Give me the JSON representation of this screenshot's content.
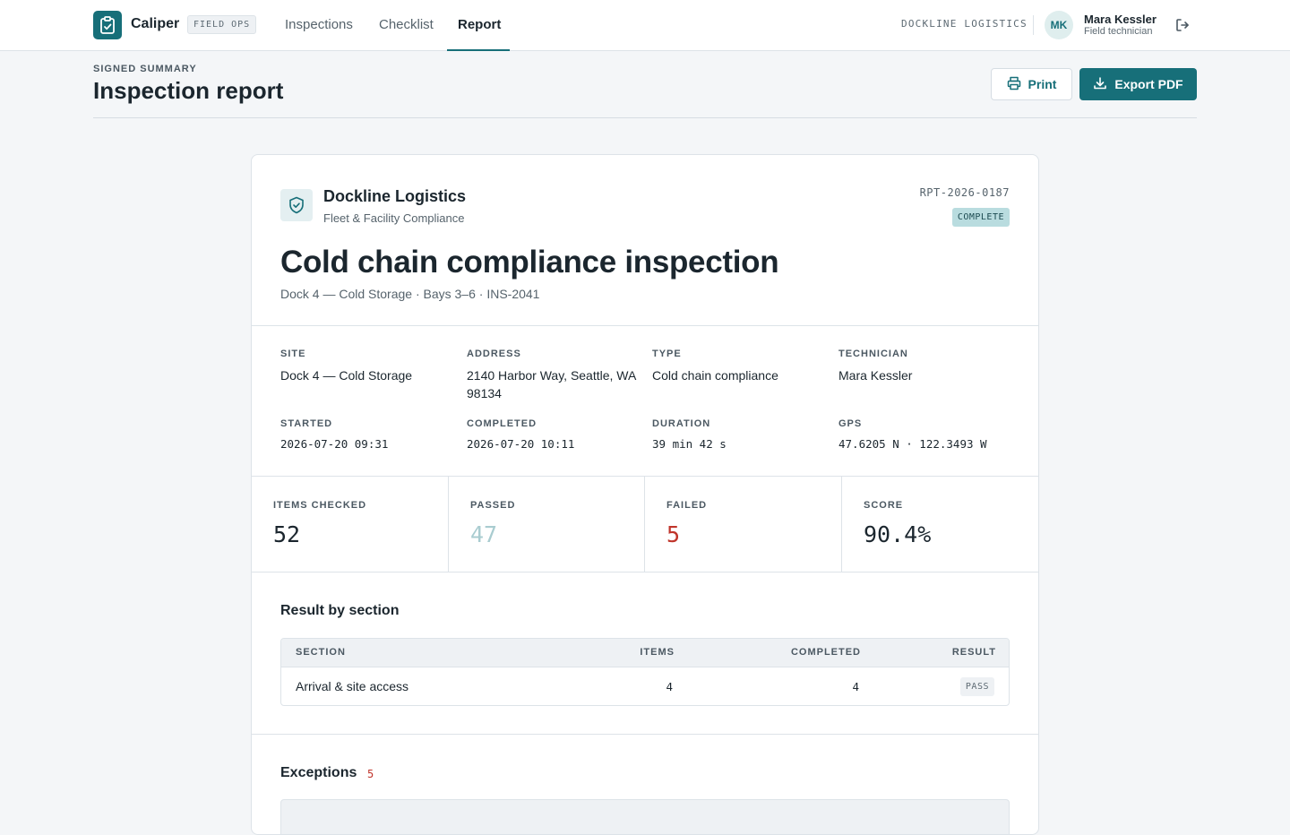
{
  "app": {
    "name": "Caliper",
    "tag": "FIELD OPS"
  },
  "nav": {
    "items": [
      {
        "label": "Inspections"
      },
      {
        "label": "Checklist"
      },
      {
        "label": "Report",
        "active": true
      }
    ]
  },
  "account": {
    "org": "DOCKLINE LOGISTICS",
    "initials": "MK",
    "name": "Mara Kessler",
    "role": "Field technician"
  },
  "page": {
    "eyebrow": "SIGNED SUMMARY",
    "title": "Inspection report",
    "print_label": "Print",
    "export_label": "Export PDF"
  },
  "report": {
    "org_name": "Dockline Logistics",
    "org_sub": "Fleet & Facility Compliance",
    "id": "RPT-2026-0187",
    "status": "COMPLETE",
    "title": "Cold chain compliance inspection",
    "subtitle": "Dock 4 — Cold Storage · Bays 3–6 · INS-2041",
    "meta": {
      "site_label": "SITE",
      "site": "Dock 4 — Cold Storage",
      "address_label": "ADDRESS",
      "address": "2140 Harbor Way, Seattle, WA 98134",
      "type_label": "TYPE",
      "type": "Cold chain compliance",
      "technician_label": "TECHNICIAN",
      "technician": "Mara Kessler",
      "started_label": "STARTED",
      "started": "2026-07-20 09:31",
      "completed_label": "COMPLETED",
      "completed": "2026-07-20 10:11",
      "duration_label": "DURATION",
      "duration": "39 min 42 s",
      "gps_label": "GPS",
      "gps": "47.6205 N · 122.3493 W"
    },
    "stats": {
      "checked_label": "ITEMS CHECKED",
      "checked": "52",
      "passed_label": "PASSED",
      "passed": "47",
      "failed_label": "FAILED",
      "failed": "5",
      "score_label": "SCORE",
      "score": "90.4%"
    },
    "sections": {
      "heading": "Result by section",
      "columns": {
        "section": "SECTION",
        "items": "ITEMS",
        "completed": "COMPLETED",
        "result": "RESULT"
      },
      "rows": [
        {
          "section": "Arrival & site access",
          "items": "4",
          "completed": "4",
          "result": "PASS"
        }
      ]
    },
    "exceptions": {
      "heading": "Exceptions",
      "count": "5"
    }
  },
  "colors": {
    "accent": "#176f79",
    "failed": "#c0352b",
    "passed": "#a9ccd0"
  }
}
